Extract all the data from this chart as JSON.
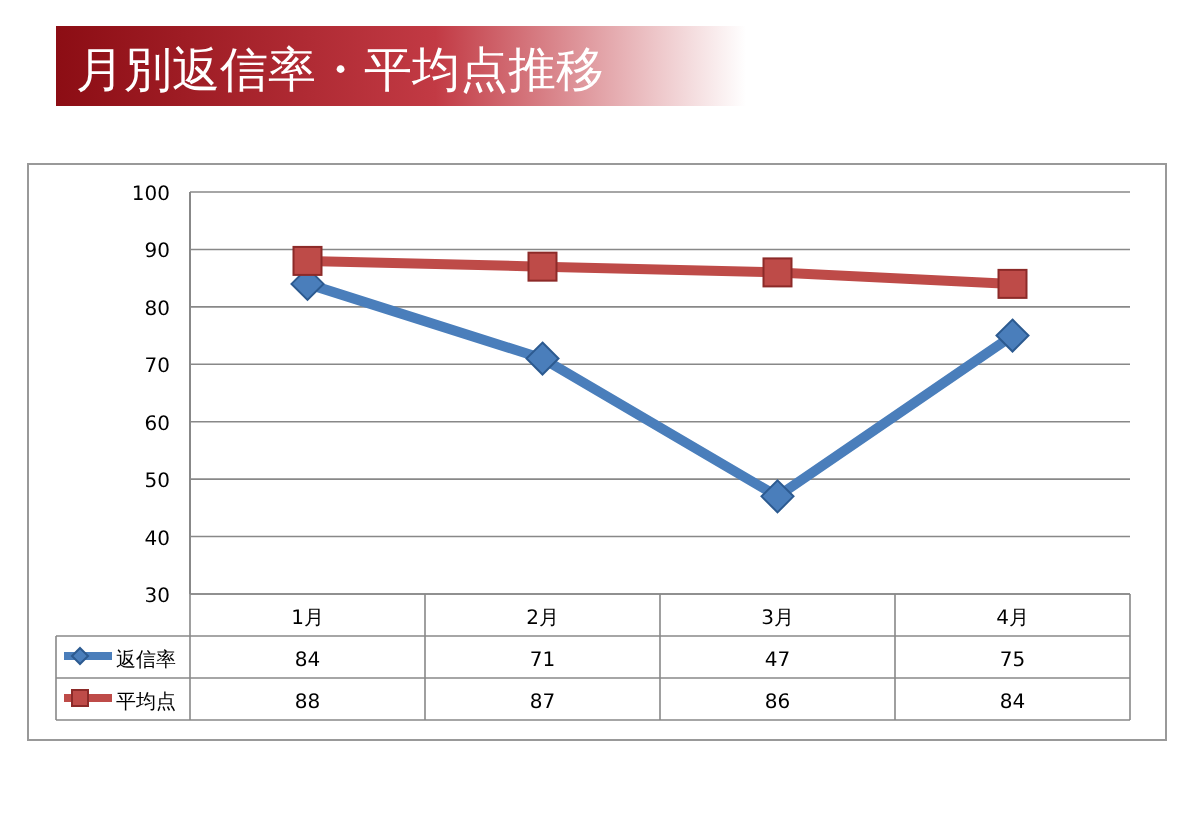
{
  "chart_data": {
    "type": "line",
    "title": "月別返信率・平均点推移",
    "categories": [
      "1月",
      "2月",
      "3月",
      "4月"
    ],
    "series": [
      {
        "name": "返信率",
        "color": "#4a7ebb",
        "values": [
          84,
          71,
          47,
          75
        ],
        "marker": "diamond"
      },
      {
        "name": "平均点",
        "color": "#be4b48",
        "values": [
          88,
          87,
          86,
          84
        ],
        "marker": "square"
      }
    ],
    "ylim": [
      30,
      100
    ],
    "yticks": [
      30,
      40,
      50,
      60,
      70,
      80,
      90,
      100
    ],
    "grid": "y",
    "data_labels": true,
    "legend": "bottom"
  }
}
